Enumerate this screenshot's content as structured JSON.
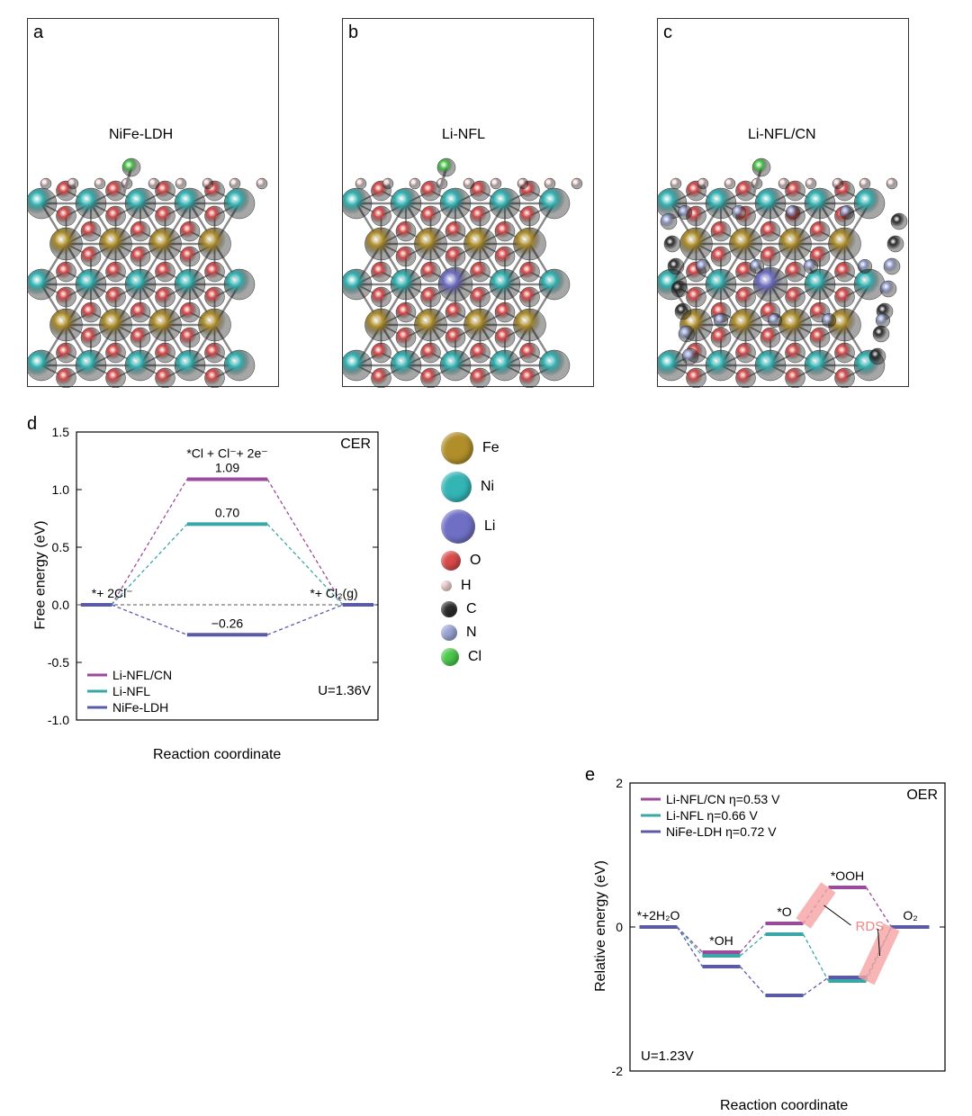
{
  "panelA": {
    "letter": "a",
    "title": "NiFe-LDH"
  },
  "panelB": {
    "letter": "b",
    "title": "Li-NFL"
  },
  "panelC": {
    "letter": "c",
    "title": "Li-NFL/CN"
  },
  "atoms": {
    "Fe": {
      "color": "#b08f2a",
      "size": 36
    },
    "Ni": {
      "color": "#33b5b5",
      "size": 34
    },
    "Li": {
      "color": "#6f6fc5",
      "size": 38
    },
    "O": {
      "color": "#d94a4a",
      "size": 22
    },
    "H": {
      "color": "#f5d5d5",
      "size": 12
    },
    "C": {
      "color": "#2b2b2b",
      "size": 18
    },
    "N": {
      "color": "#9aa5d6",
      "size": 18
    },
    "Cl": {
      "color": "#4ac94a",
      "size": 20
    }
  },
  "legendOrder": [
    "Fe",
    "Ni",
    "Li",
    "O",
    "H",
    "C",
    "N",
    "Cl"
  ],
  "panelD": {
    "letter": "d",
    "cornerTR": "CER",
    "cornerBR": "U=1.36V",
    "ylabel": "Free energy (eV)",
    "xlabel": "Reaction coordinate",
    "ylim": [
      -1.0,
      1.5
    ],
    "ytick_step": 0.5,
    "yticks": [
      -1.0,
      -0.5,
      0.0,
      0.5,
      1.0,
      1.5
    ],
    "stages": [
      "*+ 2Cl⁻",
      "*Cl + Cl⁻+ 2e⁻",
      "*+ Cl₂(g)"
    ],
    "series": [
      {
        "name": "Li-NFL/CN",
        "color": "#9b4b9b",
        "values": [
          0,
          1.09,
          0
        ],
        "valLabel": "1.09"
      },
      {
        "name": "Li-NFL",
        "color": "#3aa7a7",
        "values": [
          0,
          0.7,
          0
        ],
        "valLabel": "0.70"
      },
      {
        "name": "NiFe-LDH",
        "color": "#5a5aa8",
        "values": [
          0,
          -0.26,
          0
        ],
        "valLabel": "−0.26"
      }
    ]
  },
  "panelE": {
    "letter": "e",
    "cornerTR": "OER",
    "cornerBL": "U=1.23V",
    "ylabel": "Relative energy (eV)",
    "xlabel": "Reaction coordinate",
    "ylim": [
      -2,
      2
    ],
    "ytick_step": 2,
    "yticks": [
      -2,
      0,
      2
    ],
    "stages": [
      "*+2H₂O",
      "*OH",
      "*O",
      "*OOH",
      "O₂"
    ],
    "rds_label": "RDS",
    "rds_color": "#f5a3a3",
    "series": [
      {
        "name": "Li-NFL/CN",
        "eta": "η=0.53 V",
        "color": "#9b4b9b",
        "values": [
          0,
          -0.35,
          0.05,
          0.55,
          0
        ]
      },
      {
        "name": "Li-NFL",
        "eta": "η=0.66 V",
        "color": "#3aa7a7",
        "values": [
          0,
          -0.4,
          -0.1,
          -0.75,
          0
        ]
      },
      {
        "name": "NiFe-LDH",
        "eta": "η=0.72 V",
        "color": "#5a5aa8",
        "values": [
          0,
          -0.55,
          -0.95,
          -0.7,
          0
        ]
      }
    ]
  },
  "structure_colors": {
    "bond": "#888888"
  }
}
